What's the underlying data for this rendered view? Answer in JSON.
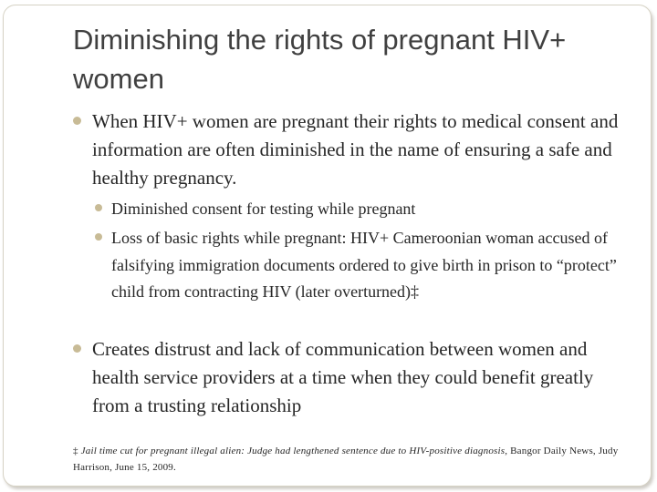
{
  "slide": {
    "title": "Diminishing the rights of pregnant HIV+ women",
    "bullets": {
      "b1": "When HIV+ women are pregnant their rights to medical consent and information are often diminished in the name of ensuring a safe and healthy pregnancy.",
      "b1_sub1": "Diminished consent for testing while pregnant",
      "b1_sub2": " Loss of basic rights while pregnant: HIV+ Cameroonian woman accused of falsifying immigration documents ordered to give birth in prison to “protect” child from contracting HIV (later overturned)‡",
      "b2": "Creates distrust and lack of communication between women and health service providers at a time when they could benefit greatly from a trusting relationship"
    },
    "footnote": {
      "mark": "‡ ",
      "article": "Jail time cut for pregnant illegal alien: Judge had lengthened sentence due to HIV-positive diagnosis",
      "source": ", Bangor Daily News,  Judy Harrison, June 15, 2009."
    },
    "colors": {
      "bullet": "#c8bb96",
      "title": "#404040",
      "text": "#262626",
      "frame_border": "#d6d2c4"
    }
  }
}
